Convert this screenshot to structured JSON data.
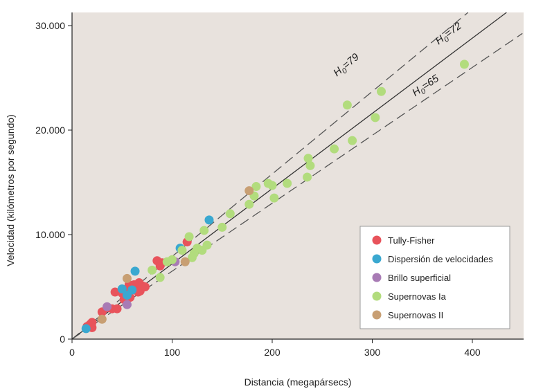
{
  "chart_data": {
    "type": "scatter",
    "title": "",
    "xlabel": "Distancia (megapársecs)",
    "ylabel": "Velocidad (kilómetros por segundo)",
    "xlim": [
      0,
      450
    ],
    "ylim": [
      0,
      31500
    ],
    "x_ticks": [
      0,
      100,
      200,
      300,
      400
    ],
    "x_tick_labels": [
      "0",
      "100",
      "200",
      "300",
      "400"
    ],
    "y_ticks": [
      0,
      10000,
      20000,
      30000
    ],
    "y_tick_labels": [
      "0",
      "10.000",
      "20.000",
      "30.000"
    ],
    "grid": false,
    "background_color": "#e8e2dd",
    "legend_position": "bottom-right",
    "fit_lines": [
      {
        "label_prefix": "H",
        "label_sub": "0",
        "label_suffix": "=79",
        "slope": 79,
        "style": "dashed"
      },
      {
        "label_prefix": "H",
        "label_sub": "0",
        "label_suffix": "=72",
        "slope": 72,
        "style": "solid"
      },
      {
        "label_prefix": "H",
        "label_sub": "0",
        "label_suffix": "=65",
        "slope": 65,
        "style": "dashed"
      }
    ],
    "series": [
      {
        "name": "Tully-Fisher",
        "color": "#e8535b",
        "points": [
          [
            15,
            1200
          ],
          [
            18,
            1400
          ],
          [
            20,
            1100
          ],
          [
            20,
            1600
          ],
          [
            30,
            2600
          ],
          [
            35,
            3000
          ],
          [
            40,
            2900
          ],
          [
            43,
            4500
          ],
          [
            45,
            2900
          ],
          [
            50,
            4400
          ],
          [
            52,
            3800
          ],
          [
            55,
            4700
          ],
          [
            56,
            4000
          ],
          [
            57,
            5200
          ],
          [
            58,
            4000
          ],
          [
            60,
            5000
          ],
          [
            62,
            5200
          ],
          [
            65,
            5000
          ],
          [
            66,
            4500
          ],
          [
            67,
            5400
          ],
          [
            68,
            4600
          ],
          [
            70,
            5100
          ],
          [
            73,
            5000
          ],
          [
            85,
            7500
          ],
          [
            88,
            7000
          ],
          [
            90,
            7300
          ],
          [
            115,
            9300
          ]
        ]
      },
      {
        "name": "Dispersión de velocidades",
        "color": "#3aa8d0",
        "points": [
          [
            14,
            1000
          ],
          [
            50,
            4800
          ],
          [
            55,
            4200
          ],
          [
            60,
            4700
          ],
          [
            63,
            6500
          ],
          [
            108,
            8700
          ],
          [
            137,
            11400
          ]
        ]
      },
      {
        "name": "Brillo superficial",
        "color": "#a87bb5",
        "points": [
          [
            35,
            3100
          ],
          [
            55,
            3300
          ],
          [
            103,
            7400
          ]
        ]
      },
      {
        "name": "Supernovas Ia",
        "color": "#b2dc7d",
        "points": [
          [
            80,
            6600
          ],
          [
            88,
            5900
          ],
          [
            95,
            7400
          ],
          [
            100,
            7600
          ],
          [
            110,
            8500
          ],
          [
            117,
            9800
          ],
          [
            120,
            7800
          ],
          [
            122,
            8200
          ],
          [
            125,
            8700
          ],
          [
            130,
            8500
          ],
          [
            132,
            10400
          ],
          [
            135,
            9000
          ],
          [
            150,
            10700
          ],
          [
            158,
            12000
          ],
          [
            177,
            12900
          ],
          [
            182,
            13700
          ],
          [
            184,
            14600
          ],
          [
            196,
            14900
          ],
          [
            200,
            14700
          ],
          [
            202,
            13500
          ],
          [
            215,
            14900
          ],
          [
            235,
            15500
          ],
          [
            236,
            17300
          ],
          [
            238,
            16600
          ],
          [
            262,
            18200
          ],
          [
            275,
            22400
          ],
          [
            280,
            19000
          ],
          [
            303,
            21200
          ],
          [
            309,
            23700
          ],
          [
            392,
            26300
          ]
        ]
      },
      {
        "name": "Supernovas II",
        "color": "#c89f73",
        "points": [
          [
            30,
            1900
          ],
          [
            55,
            5800
          ],
          [
            113,
            7400
          ],
          [
            177,
            14200
          ]
        ]
      }
    ]
  }
}
